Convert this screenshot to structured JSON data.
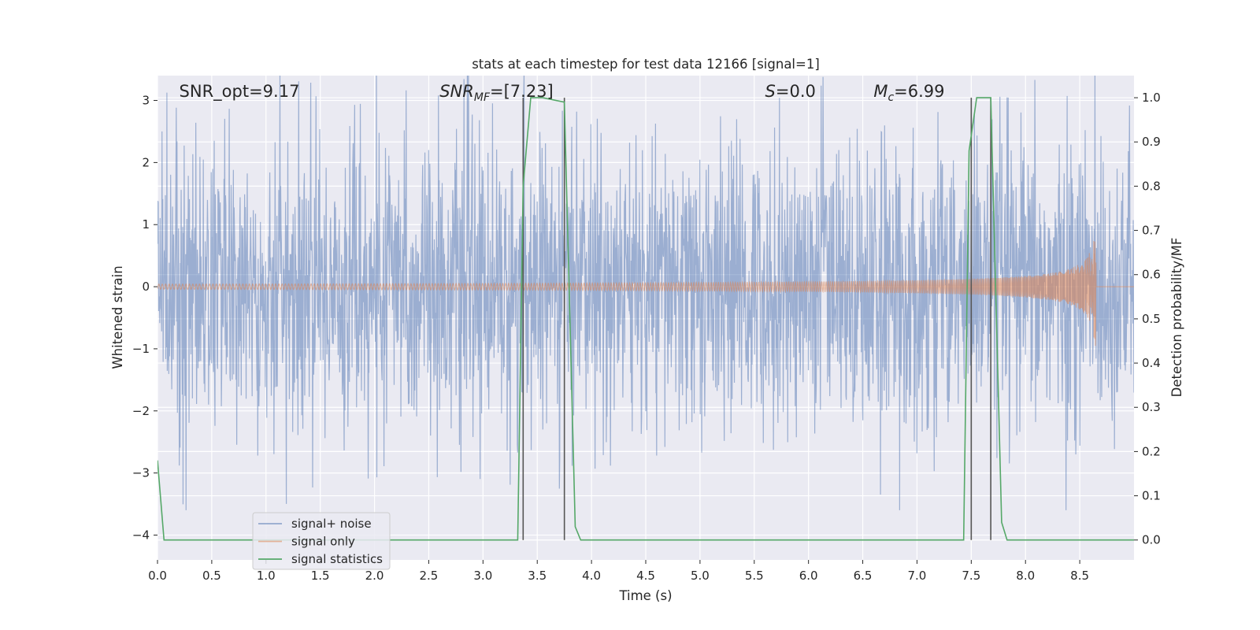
{
  "chart_data": {
    "type": "line",
    "title": "stats at each timestep for test data 12166 [signal=1]",
    "xlabel": "Time (s)",
    "ylabel": "Whitened strain",
    "ylabel_right": "Detection probability/MF",
    "xlim": [
      0,
      9
    ],
    "ylim": [
      -4.4,
      3.4
    ],
    "ylim_right": [
      -0.045,
      1.05
    ],
    "x_ticks": [
      0.0,
      0.5,
      1.0,
      1.5,
      2.0,
      2.5,
      3.0,
      3.5,
      4.0,
      4.5,
      5.0,
      5.5,
      6.0,
      6.5,
      7.0,
      7.5,
      8.0,
      8.5
    ],
    "x_tick_labels": [
      "0.0",
      "0.5",
      "1.0",
      "1.5",
      "2.0",
      "2.5",
      "3.0",
      "3.5",
      "4.0",
      "4.5",
      "5.0",
      "5.5",
      "6.0",
      "6.5",
      "7.0",
      "7.5",
      "8.0",
      "8.5"
    ],
    "y_ticks": [
      -4,
      -3,
      -2,
      -1,
      0,
      1,
      2,
      3
    ],
    "y_tick_labels": [
      "−4",
      "−3",
      "−2",
      "−1",
      "0",
      "1",
      "2",
      "3"
    ],
    "y_ticks_right": [
      0.0,
      0.1,
      0.2,
      0.3,
      0.4,
      0.5,
      0.6,
      0.7,
      0.8,
      0.9,
      1.0
    ],
    "y_tick_labels_right": [
      "0.0",
      "0.1",
      "0.2",
      "0.3",
      "0.4",
      "0.5",
      "0.6",
      "0.7",
      "0.8",
      "0.9",
      "1.0"
    ],
    "grid": true,
    "legend_position": "lower-left",
    "annotations": [
      {
        "id": "snr-opt",
        "text": "SNR_opt=9.17",
        "x": 0.2
      },
      {
        "id": "snr-mf",
        "text": "SNR_MF=[7.23]",
        "x": 2.6
      },
      {
        "id": "s-stat",
        "text": "S=0.0",
        "x": 5.6
      },
      {
        "id": "mc",
        "text": "M_c=6.99",
        "x": 6.6
      }
    ],
    "series": [
      {
        "name": "signal+ noise",
        "color": "#4c72b0",
        "axis": "left",
        "kind": "noise",
        "amplitude_typical": 1.8,
        "amplitude_max": 3.6
      },
      {
        "name": "signal only",
        "color": "#dd8452",
        "axis": "left",
        "kind": "chirp",
        "merger_time": 8.65,
        "peak_amplitude": 1.2
      },
      {
        "name": "signal statistics",
        "color": "#55a868",
        "axis": "right",
        "kind": "line",
        "x": [
          0.0,
          0.06,
          0.12,
          3.32,
          3.37,
          3.44,
          3.55,
          3.75,
          3.85,
          3.9,
          7.43,
          7.48,
          7.55,
          7.68,
          7.78,
          7.83,
          9.0
        ],
        "y": [
          0.18,
          0.0,
          0.0,
          0.0,
          0.8,
          1.0,
          1.0,
          0.99,
          0.03,
          0.0,
          0.0,
          0.88,
          1.0,
          1.0,
          0.04,
          0.0,
          0.0
        ]
      }
    ],
    "vertical_markers": {
      "color": "#555555",
      "x": [
        3.37,
        3.75,
        7.5,
        7.68
      ],
      "y_range_right": [
        0.0,
        1.0
      ]
    }
  }
}
